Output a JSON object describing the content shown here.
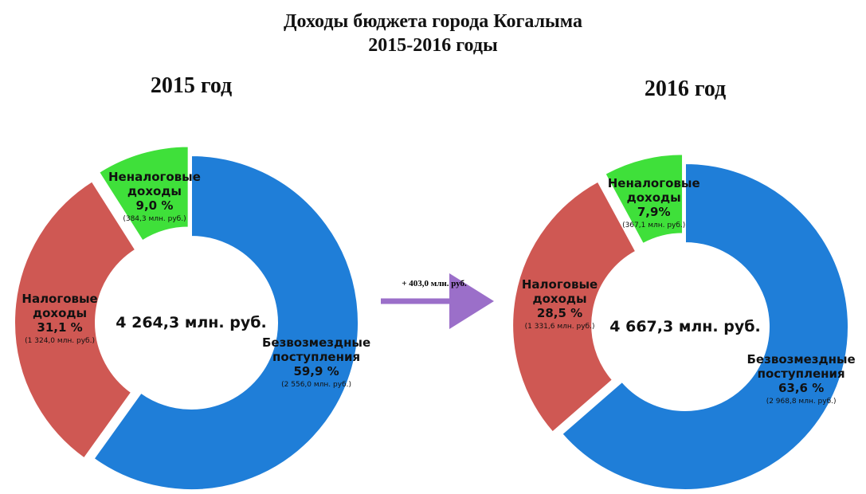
{
  "title": "Доходы бюджета города Когалыма",
  "subtitle": "2015-2016 годы",
  "annotation": "+ 403,0 млн. руб.",
  "chart_data": [
    {
      "type": "pie",
      "title": "2015 год",
      "center_label": "4 264,3 млн. руб.",
      "categories": [
        "Безвозмездные поступления",
        "Налоговые доходы",
        "Неналоговые доходы"
      ],
      "values": [
        59.9,
        31.1,
        9.0
      ],
      "value_labels": [
        "59,9 %",
        "31,1 %",
        "9,0 %"
      ],
      "detail_labels": [
        "(2 556,0 млн. руб.)",
        "(1 324,0 млн. руб.)",
        "(384,3 млн. руб.)"
      ],
      "colors": [
        "#1f7ed8",
        "#cf5853",
        "#3fe03a"
      ]
    },
    {
      "type": "pie",
      "title": "2016 год",
      "center_label": "4 667,3 млн. руб.",
      "categories": [
        "Безвозмездные поступления",
        "Налоговые доходы",
        "Неналоговые доходы"
      ],
      "values": [
        63.6,
        28.5,
        7.9
      ],
      "value_labels": [
        "63,6 %",
        "28,5 %",
        "7,9%"
      ],
      "detail_labels": [
        "(2 968,8 млн. руб.)",
        "(1 331,6 млн. руб.)",
        "(367,1 млн. руб.)"
      ],
      "colors": [
        "#1f7ed8",
        "#cf5853",
        "#3fe03a"
      ]
    }
  ]
}
